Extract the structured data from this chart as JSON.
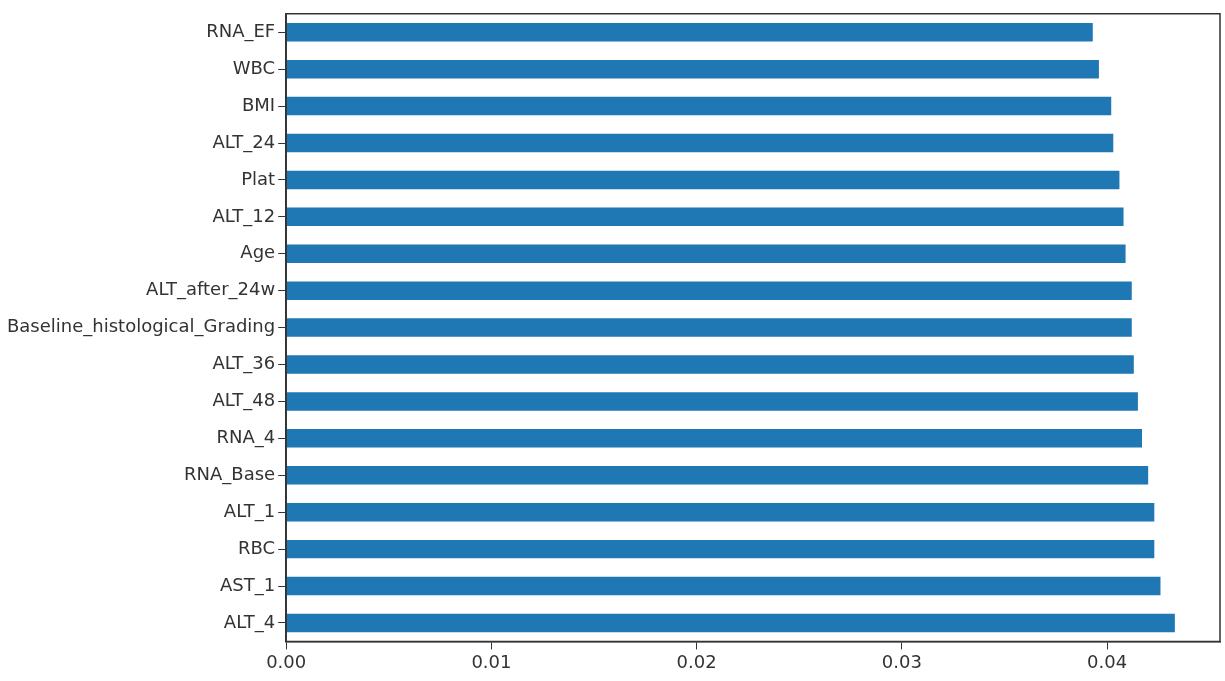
{
  "chart_data": {
    "type": "bar",
    "orientation": "horizontal",
    "categories": [
      "RNA_EF",
      "WBC",
      "BMI",
      "ALT_24",
      "Plat",
      "ALT_12",
      "Age",
      "ALT_after_24w",
      "Baseline_histological_Grading",
      "ALT_36",
      "ALT_48",
      "RNA_4",
      "RNA_Base",
      "ALT_1",
      "RBC",
      "AST_1",
      "ALT_4"
    ],
    "values": [
      0.0393,
      0.0396,
      0.0402,
      0.0403,
      0.0406,
      0.0408,
      0.0409,
      0.0412,
      0.0412,
      0.0413,
      0.0415,
      0.0417,
      0.042,
      0.0423,
      0.0423,
      0.0426,
      0.0433
    ],
    "color": "#1f77b4",
    "xlim": [
      0,
      0.0455
    ],
    "xticks": [
      {
        "value": 0,
        "label": "0.00"
      },
      {
        "value": 0.01,
        "label": "0.01"
      },
      {
        "value": 0.02,
        "label": "0.02"
      },
      {
        "value": 0.03,
        "label": "0.03"
      },
      {
        "value": 0.04,
        "label": "0.04"
      }
    ],
    "grid": false,
    "legend": false
  }
}
